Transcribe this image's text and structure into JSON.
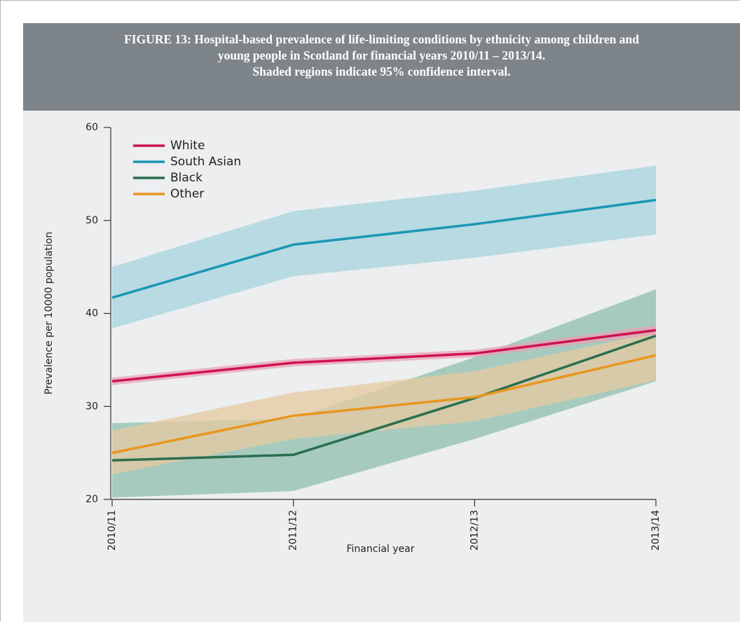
{
  "chart_data": {
    "type": "line",
    "title": [
      "FIGURE 13: Hospital-based prevalence of life-limiting conditions by ethnicity among children and",
      "young people in Scotland for financial years 2010/11 – 2013/14.",
      "Shaded regions indicate 95% confidence interval."
    ],
    "x_label": "Financial year",
    "y_label": "Prevalence per 10000 population",
    "categories": [
      "2010/11",
      "2011/12",
      "2012/13",
      "2013/14"
    ],
    "ylim": [
      20,
      60
    ],
    "yticks": [
      20,
      30,
      40,
      50,
      60
    ],
    "legend": "upper-left",
    "series": [
      {
        "name": "White",
        "color": "#d0134f",
        "band_color": "#e8a1b6",
        "values": [
          32.7,
          34.7,
          35.7,
          38.2
        ],
        "lower": [
          32.3,
          34.3,
          35.3,
          37.7
        ],
        "upper": [
          33.1,
          35.1,
          36.1,
          38.7
        ]
      },
      {
        "name": "South Asian",
        "color": "#1b97b4",
        "band_color": "#a7d3de",
        "values": [
          41.7,
          47.4,
          49.6,
          52.2
        ],
        "lower": [
          38.4,
          44.0,
          46.0,
          48.5
        ],
        "upper": [
          45.0,
          51.0,
          53.2,
          55.9
        ]
      },
      {
        "name": "Black",
        "color": "#2b6e4f",
        "band_color": "#8fbfae",
        "values": [
          24.2,
          24.8,
          30.9,
          37.6
        ],
        "lower": [
          20.2,
          20.9,
          26.5,
          32.7
        ],
        "upper": [
          28.2,
          28.7,
          35.3,
          42.6
        ]
      },
      {
        "name": "Other",
        "color": "#e8961e",
        "band_color": "#e5c9a0",
        "values": [
          25.0,
          29.0,
          31.0,
          35.5
        ],
        "lower": [
          22.7,
          26.5,
          28.4,
          32.8
        ],
        "upper": [
          27.4,
          31.5,
          33.8,
          38.0
        ]
      }
    ]
  }
}
